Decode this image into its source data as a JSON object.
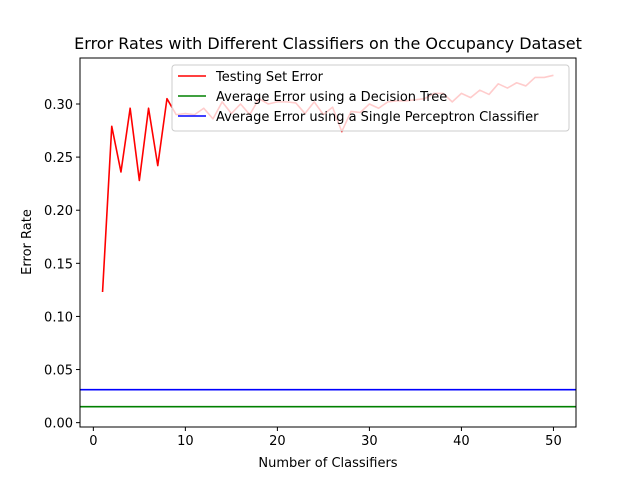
{
  "chart_data": {
    "type": "line",
    "title": "Error Rates with Different Classifiers on the Occupancy Dataset",
    "xlabel": "Number of Classifiers",
    "ylabel": "Error Rate",
    "xlim": [
      -1.45,
      52.45
    ],
    "ylim": [
      -0.0041,
      0.3433
    ],
    "xticks": [
      0,
      10,
      20,
      30,
      40,
      50
    ],
    "yticks": [
      0.0,
      0.05,
      0.1,
      0.15,
      0.2,
      0.25,
      0.3
    ],
    "xtick_labels": [
      "0",
      "10",
      "20",
      "30",
      "40",
      "50"
    ],
    "ytick_labels": [
      "0.00",
      "0.05",
      "0.10",
      "0.15",
      "0.20",
      "0.25",
      "0.30"
    ],
    "legend_position": "top-right",
    "series": [
      {
        "name": "Testing Set Error",
        "kind": "line",
        "color": "#ff0000",
        "x": [
          1,
          2,
          3,
          4,
          5,
          6,
          7,
          8,
          9,
          10,
          11,
          12,
          13,
          14,
          15,
          16,
          17,
          18,
          19,
          20,
          21,
          22,
          23,
          24,
          25,
          26,
          27,
          28,
          29,
          30,
          31,
          32,
          33,
          34,
          35,
          36,
          37,
          38,
          39,
          40,
          41,
          42,
          43,
          44,
          45,
          46,
          47,
          48,
          49,
          50
        ],
        "values": [
          0.123,
          0.279,
          0.236,
          0.296,
          0.228,
          0.296,
          0.242,
          0.305,
          0.29,
          0.291,
          0.29,
          0.296,
          0.286,
          0.302,
          0.291,
          0.3,
          0.29,
          0.305,
          0.3,
          0.302,
          0.302,
          0.301,
          0.291,
          0.302,
          0.29,
          0.297,
          0.274,
          0.293,
          0.292,
          0.3,
          0.296,
          0.302,
          0.303,
          0.303,
          0.304,
          0.305,
          0.31,
          0.31,
          0.302,
          0.31,
          0.306,
          0.313,
          0.309,
          0.319,
          0.315,
          0.32,
          0.317,
          0.325,
          0.325,
          0.327
        ]
      },
      {
        "name": "Average Error using a Decision Tree",
        "kind": "hline",
        "color": "#008000",
        "value": 0.015
      },
      {
        "name": "Average Error using a Single Perceptron Classifier",
        "kind": "hline",
        "color": "#0000ff",
        "value": 0.031
      }
    ]
  }
}
